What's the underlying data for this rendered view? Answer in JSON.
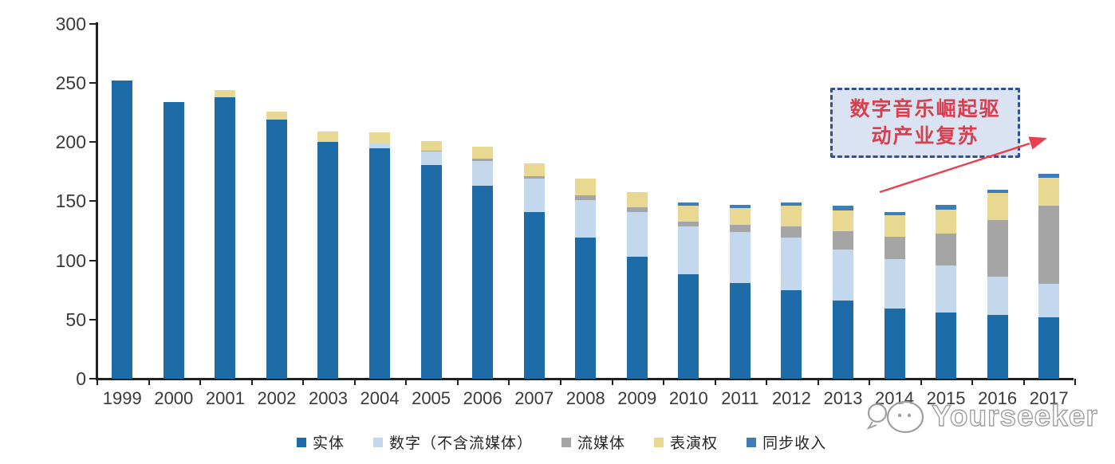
{
  "chart_data": {
    "type": "bar",
    "subtype": "stacked-vertical",
    "title": "",
    "xlabel": "",
    "ylabel": "",
    "categories": [
      "1999",
      "2000",
      "2001",
      "2002",
      "2003",
      "2004",
      "2005",
      "2006",
      "2007",
      "2008",
      "2009",
      "2010",
      "2011",
      "2012",
      "2013",
      "2014",
      "2015",
      "2016",
      "2017"
    ],
    "series": [
      {
        "name": "实体",
        "color": "#1e6ca7",
        "values": [
          252,
          234,
          238,
          219,
          200,
          195,
          181,
          163,
          141,
          119,
          103,
          88,
          81,
          75,
          66,
          59,
          56,
          54,
          52
        ]
      },
      {
        "name": "数字（不含流媒体）",
        "color": "#c3d8ed",
        "values": [
          0,
          0,
          0,
          0,
          0,
          4,
          11,
          21,
          28,
          32,
          38,
          41,
          43,
          44,
          43,
          42,
          40,
          32,
          28
        ]
      },
      {
        "name": "流媒体",
        "color": "#a5a5a5",
        "values": [
          0,
          0,
          0,
          0,
          0,
          0,
          1,
          2,
          2,
          4,
          4,
          4,
          6,
          10,
          16,
          19,
          27,
          48,
          66
        ]
      },
      {
        "name": "表演权",
        "color": "#e9d892",
        "values": [
          0,
          0,
          6,
          7,
          9,
          9,
          8,
          10,
          11,
          14,
          13,
          13,
          14,
          17,
          17,
          18,
          20,
          23,
          24
        ]
      },
      {
        "name": "同步收入",
        "color": "#3f7db9",
        "values": [
          0,
          0,
          0,
          0,
          0,
          0,
          0,
          0,
          0,
          0,
          0,
          3,
          3,
          3,
          4,
          3,
          4,
          3,
          3
        ]
      }
    ],
    "ylim": [
      0,
      300
    ],
    "yticks": [
      0,
      50,
      100,
      150,
      200,
      250,
      300
    ],
    "grid": false,
    "legend_position": "bottom"
  },
  "annotation": {
    "line1": "数字音乐崛起驱",
    "line2": "动产业复苏",
    "text_color": "#d6404f",
    "border_color": "#33518e",
    "fill_color": "#d9e3f1",
    "arrow_color": "#e9404f"
  },
  "watermark": {
    "text": "Yourseeker"
  }
}
